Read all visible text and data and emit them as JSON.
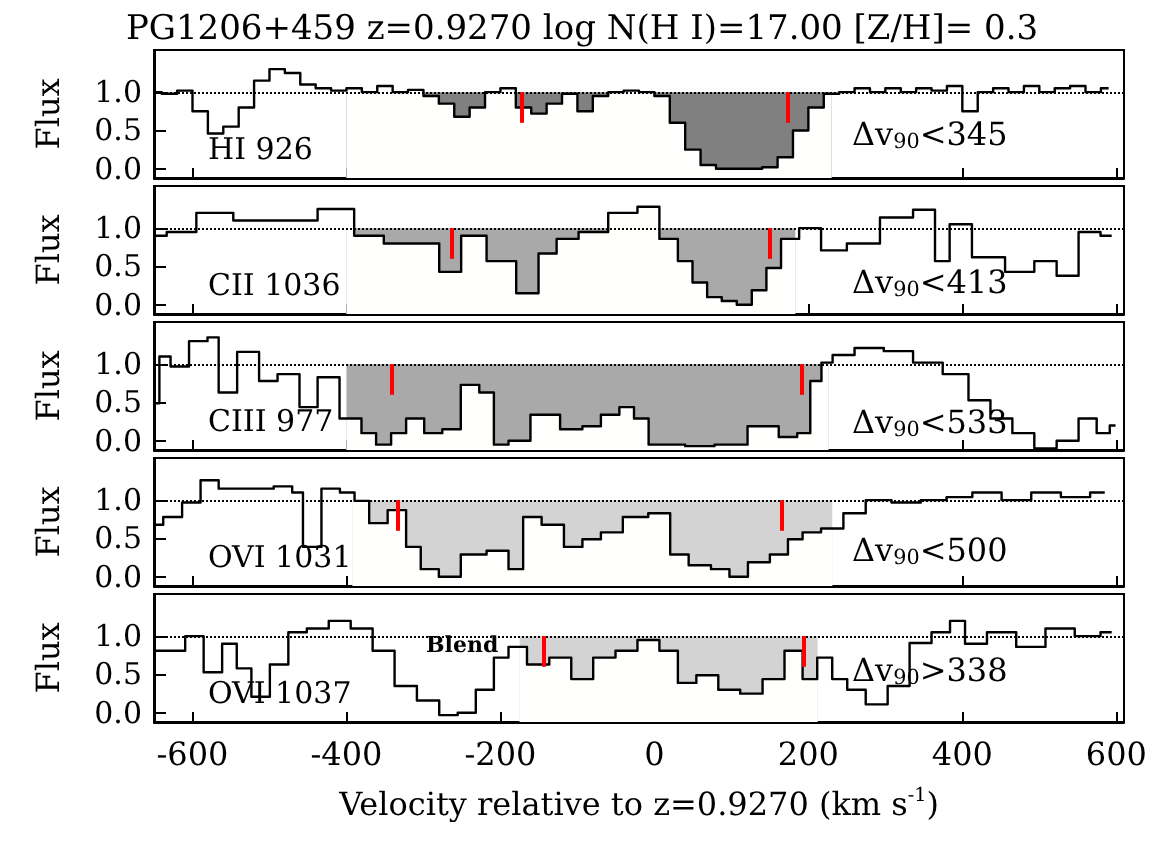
{
  "chart_data": [
    {
      "type": "step",
      "title": "PG1206+459 z=0.9270 log N(H I)=17.00 [Z/H]= 0.3",
      "ylabel": "Flux",
      "annotations": [
        "HI 926",
        "Δv$_{90}$<345"
      ],
      "x": [
        -650,
        -630,
        -610,
        -590,
        -570,
        -550,
        -530,
        -510,
        -490,
        -470,
        -450,
        -430,
        -410,
        -390,
        -370,
        -350,
        -330,
        -310,
        -290,
        -270,
        -250,
        -230,
        -210,
        -190,
        -170,
        -150,
        -130,
        -110,
        -90,
        -70,
        -50,
        -30,
        -10,
        10,
        30,
        50,
        70,
        90,
        110,
        130,
        150,
        170,
        190,
        210,
        230,
        250,
        270,
        290,
        310,
        330,
        350,
        370,
        390,
        410,
        430,
        450,
        470,
        490,
        510,
        530,
        550,
        570,
        590
      ],
      "values": [
        1.0,
        0.98,
        1.02,
        0.75,
        0.46,
        0.55,
        0.8,
        1.15,
        1.3,
        1.25,
        1.1,
        1.05,
        1.02,
        1.05,
        1.0,
        1.08,
        1.0,
        1.03,
        0.95,
        0.85,
        0.68,
        0.8,
        1.0,
        1.05,
        0.8,
        0.72,
        0.85,
        0.98,
        0.75,
        0.95,
        1.0,
        1.02,
        1.0,
        0.95,
        0.6,
        0.25,
        0.05,
        0.0,
        0.0,
        0.0,
        0.02,
        0.15,
        0.5,
        0.8,
        0.98,
        1.0,
        1.05,
        1.0,
        1.05,
        1.0,
        1.05,
        1.02,
        1.08,
        0.75,
        1.0,
        1.05,
        1.0,
        1.08,
        1.0,
        1.05,
        1.08,
        1.0,
        1.05
      ],
      "color": "#000000",
      "xlim": [
        -650,
        610
      ],
      "xticks": [
        -600,
        -400,
        -200,
        0,
        200,
        400,
        600
      ],
      "ylim": [
        -0.12,
        1.55
      ],
      "yticks": [
        {
          "value": 0,
          "label": "0.0"
        },
        {
          "value": 0.5,
          "label": "0.5"
        },
        {
          "value": 1,
          "label": "1.0"
        }
      ],
      "tick_labels": "y",
      "bands": [
        {
          "axis": "x",
          "from": -400,
          "to": 230,
          "color": "#808080"
        }
      ],
      "ref_lines": [
        {
          "axis": "y",
          "value": 1,
          "color": "#000000",
          "line_style": "dotted"
        },
        {
          "axis": "x",
          "value": -172,
          "color": "#ff0000"
        },
        {
          "axis": "x",
          "value": 173,
          "color": "#ff0000"
        }
      ]
    },
    {
      "type": "step",
      "ylabel": "Flux",
      "annotations": [
        "CII 1036",
        "Δv$_{90}$<413"
      ],
      "x": [
        -648,
        -619,
        -571,
        -523,
        -466,
        -409,
        -371,
        -332,
        -294,
        -265,
        -237,
        -199,
        -160,
        -141,
        -113,
        -84,
        -36,
        -8,
        21,
        40,
        59,
        78,
        97,
        117,
        136,
        155,
        174,
        202,
        231,
        269,
        317,
        355,
        374,
        393,
        432,
        479,
        508,
        537,
        565,
        594
      ],
      "values": [
        0.9,
        0.95,
        1.2,
        1.1,
        1.1,
        1.25,
        0.9,
        0.8,
        0.8,
        0.43,
        0.9,
        0.57,
        0.15,
        0.67,
        0.86,
        0.95,
        1.2,
        1.28,
        0.86,
        0.57,
        0.29,
        0.1,
        0.05,
        0.0,
        0.19,
        0.48,
        0.86,
        1.0,
        0.71,
        0.8,
        1.14,
        1.24,
        0.57,
        1.05,
        0.62,
        0.43,
        0.57,
        0.38,
        0.95,
        0.9
      ],
      "color": "#000000",
      "xlim": [
        -650,
        610
      ],
      "xticks": [
        -600,
        -400,
        -200,
        0,
        200,
        400,
        600
      ],
      "ylim": [
        -0.12,
        1.55
      ],
      "yticks": [
        {
          "value": 0,
          "label": "0.0"
        },
        {
          "value": 0.5,
          "label": "0.5"
        },
        {
          "value": 1,
          "label": "1.0"
        }
      ],
      "tick_labels": "y",
      "bands": [
        {
          "axis": "x",
          "from": -400,
          "to": 183,
          "color": "#a9a9a9"
        }
      ],
      "ref_lines": [
        {
          "axis": "y",
          "value": 1,
          "color": "#000000",
          "line_style": "dotted"
        },
        {
          "axis": "x",
          "value": -263,
          "color": "#ff0000"
        },
        {
          "axis": "x",
          "value": 150,
          "color": "#ff0000"
        }
      ]
    },
    {
      "type": "step",
      "ylabel": "Flux",
      "annotations": [
        "CIII 977",
        "Δv$_{90}$<533"
      ],
      "x": [
        -648,
        -638,
        -619,
        -590,
        -571,
        -561,
        -523,
        -504,
        -475,
        -447,
        -428,
        -390,
        -371,
        -352,
        -332,
        -313,
        -285,
        -266,
        -237,
        -218,
        -199,
        -180,
        -142,
        -103,
        -84,
        -55,
        -36,
        -17,
        2,
        21,
        59,
        97,
        145,
        178,
        193,
        212,
        222,
        241,
        279,
        317,
        355,
        394,
        422,
        451,
        479,
        508,
        537,
        565,
        584,
        599
      ],
      "values": [
        0.49,
        1.1,
        0.97,
        1.3,
        1.35,
        0.63,
        1.16,
        0.78,
        0.87,
        0.44,
        0.83,
        0.29,
        0.1,
        -0.05,
        0.1,
        0.29,
        0.1,
        0.15,
        0.73,
        0.63,
        -0.05,
        0.0,
        0.34,
        0.15,
        0.19,
        0.34,
        0.44,
        0.29,
        -0.05,
        -0.05,
        -0.07,
        -0.05,
        0.19,
        0.05,
        0.1,
        0.78,
        1.02,
        1.12,
        1.21,
        1.17,
        1.02,
        0.87,
        0.53,
        0.29,
        0.1,
        -0.1,
        0.0,
        0.29,
        0.1,
        0.2
      ],
      "color": "#000000",
      "xlim": [
        -650,
        610
      ],
      "xticks": [
        -600,
        -400,
        -200,
        0,
        200,
        400,
        600
      ],
      "ylim": [
        -0.12,
        1.55
      ],
      "yticks": [
        {
          "value": 0,
          "label": "0.0"
        },
        {
          "value": 0.5,
          "label": "0.5"
        },
        {
          "value": 1,
          "label": "1.0"
        }
      ],
      "tick_labels": "y",
      "bands": [
        {
          "axis": "x",
          "from": -400,
          "to": 226,
          "color": "#a9a9a9"
        }
      ],
      "ref_lines": [
        {
          "axis": "y",
          "value": 1,
          "color": "#000000",
          "line_style": "dotted"
        },
        {
          "axis": "x",
          "value": -342,
          "color": "#ff0000"
        },
        {
          "axis": "x",
          "value": 191,
          "color": "#ff0000"
        }
      ]
    },
    {
      "type": "step",
      "ylabel": "Flux",
      "annotations": [
        "OVI 1031",
        "Δv$_{90}$<500"
      ],
      "x": [
        -648,
        -628,
        -599,
        -580,
        -552,
        -514,
        -475,
        -466,
        -447,
        -418,
        -399,
        -380,
        -361,
        -332,
        -313,
        -294,
        -266,
        -237,
        -199,
        -180,
        -161,
        -132,
        -103,
        -84,
        -55,
        -27,
        11,
        30,
        59,
        88,
        107,
        136,
        164,
        183,
        202,
        231,
        260,
        289,
        327,
        365,
        394,
        432,
        470,
        509,
        547,
        585
      ],
      "values": [
        0.68,
        0.78,
        0.97,
        1.26,
        1.15,
        1.15,
        1.18,
        1.1,
        0.39,
        1.15,
        1.1,
        0.99,
        0.7,
        0.87,
        0.39,
        0.1,
        0.0,
        0.29,
        0.34,
        0.1,
        0.78,
        0.68,
        0.39,
        0.49,
        0.58,
        0.78,
        0.83,
        0.29,
        0.15,
        0.1,
        0.0,
        0.19,
        0.29,
        0.49,
        0.58,
        0.63,
        0.83,
        1.0,
        0.97,
        1.0,
        1.04,
        1.1,
        1.0,
        1.1,
        1.04,
        1.1
      ],
      "color": "#000000",
      "xlim": [
        -650,
        610
      ],
      "xticks": [
        -600,
        -400,
        -200,
        0,
        200,
        400,
        600
      ],
      "ylim": [
        -0.12,
        1.55
      ],
      "yticks": [
        {
          "value": 0,
          "label": "0.0"
        },
        {
          "value": 0.5,
          "label": "0.5"
        },
        {
          "value": 1,
          "label": "1.0"
        }
      ],
      "tick_labels": "y",
      "bands": [
        {
          "axis": "x",
          "from": -392,
          "to": 231,
          "color": "#d3d3d3"
        }
      ],
      "ref_lines": [
        {
          "axis": "y",
          "value": 1,
          "color": "#000000",
          "line_style": "dotted"
        },
        {
          "axis": "x",
          "value": -334,
          "color": "#ff0000"
        },
        {
          "axis": "x",
          "value": 166,
          "color": "#ff0000"
        }
      ]
    },
    {
      "type": "step",
      "ylabel": "Flux",
      "xlabel": "Velocity relative to z=0.9270 (km s$^{-1}$)",
      "annotations": [
        "OVI 1037",
        "Δv$_{90}$>338",
        "Blend"
      ],
      "x": [
        -648,
        -619,
        -600,
        -571,
        -552,
        -533,
        -514,
        -485,
        -466,
        -437,
        -409,
        -380,
        -352,
        -323,
        -294,
        -265,
        -246,
        -218,
        -199,
        -180,
        -151,
        -122,
        -94,
        -65,
        -36,
        -8,
        21,
        40,
        69,
        97,
        126,
        155,
        183,
        202,
        221,
        241,
        260,
        289,
        317,
        346,
        374,
        394,
        413,
        451,
        489,
        527,
        565,
        594
      ],
      "values": [
        0.81,
        0.81,
        1.0,
        0.53,
        0.9,
        0.58,
        0.21,
        0.63,
        1.05,
        1.1,
        1.2,
        1.1,
        0.81,
        0.35,
        0.16,
        -0.03,
        0.0,
        0.3,
        0.72,
        0.86,
        0.63,
        0.72,
        0.44,
        0.72,
        0.81,
        0.95,
        0.81,
        0.39,
        0.49,
        0.3,
        0.25,
        0.44,
        0.81,
        0.44,
        0.72,
        0.44,
        0.3,
        0.11,
        0.35,
        0.91,
        1.05,
        1.2,
        0.9,
        1.05,
        0.86,
        1.1,
        1.0,
        1.05
      ],
      "color": "#000000",
      "xlim": [
        -650,
        610
      ],
      "xticks": [
        -600,
        -400,
        -200,
        0,
        200,
        400,
        600
      ],
      "ylim": [
        -0.12,
        1.55
      ],
      "yticks": [
        {
          "value": 0,
          "label": "0.0"
        },
        {
          "value": 0.5,
          "label": "0.5"
        },
        {
          "value": 1,
          "label": "1.0"
        }
      ],
      "bands": [
        {
          "axis": "x",
          "from": -175,
          "to": 212,
          "color": "#d3d3d3"
        }
      ],
      "ref_lines": [
        {
          "axis": "y",
          "value": 1,
          "color": "#000000",
          "line_style": "dotted"
        },
        {
          "axis": "x",
          "value": -145,
          "color": "#ff0000"
        },
        {
          "axis": "x",
          "value": 193,
          "color": "#ff0000"
        }
      ]
    }
  ]
}
